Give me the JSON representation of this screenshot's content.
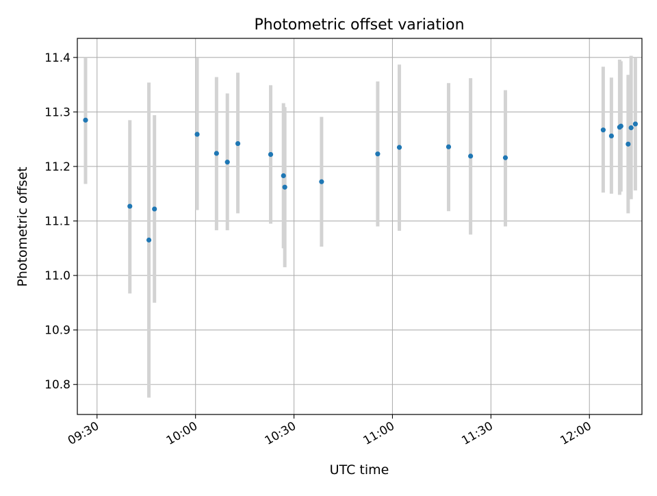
{
  "chart_data": {
    "type": "scatter",
    "title": "Photometric offset variation",
    "xlabel": "UTC time",
    "ylabel": "Photometric offset",
    "xlim": [
      "09:24",
      "12:16"
    ],
    "ylim": [
      10.745,
      11.435
    ],
    "x_ticks": [
      "09:30",
      "10:00",
      "10:30",
      "11:00",
      "11:30",
      "12:00"
    ],
    "y_ticks": [
      10.8,
      10.9,
      11.0,
      11.1,
      11.2,
      11.3,
      11.4
    ],
    "grid": true,
    "colors": {
      "point": "#1f77b4",
      "errorbar": "#d3d3d3",
      "grid": "#b0b0b0"
    },
    "points": [
      {
        "x": "09:26:30",
        "y": 11.285,
        "low": 11.168,
        "high": 11.4
      },
      {
        "x": "09:40:00",
        "y": 11.127,
        "low": 10.967,
        "high": 11.285
      },
      {
        "x": "09:45:48",
        "y": 11.065,
        "low": 10.776,
        "high": 11.354
      },
      {
        "x": "09:47:30",
        "y": 11.122,
        "low": 10.95,
        "high": 11.294
      },
      {
        "x": "10:00:30",
        "y": 11.259,
        "low": 11.12,
        "high": 11.399
      },
      {
        "x": "10:06:24",
        "y": 11.224,
        "low": 11.083,
        "high": 11.364
      },
      {
        "x": "10:09:42",
        "y": 11.208,
        "low": 11.083,
        "high": 11.334
      },
      {
        "x": "10:12:54",
        "y": 11.242,
        "low": 11.114,
        "high": 11.372
      },
      {
        "x": "10:22:54",
        "y": 11.222,
        "low": 11.095,
        "high": 11.349
      },
      {
        "x": "10:26:48",
        "y": 11.183,
        "low": 11.05,
        "high": 11.316
      },
      {
        "x": "10:27:12",
        "y": 11.162,
        "low": 11.015,
        "high": 11.309
      },
      {
        "x": "10:38:24",
        "y": 11.172,
        "low": 11.053,
        "high": 11.291
      },
      {
        "x": "10:55:30",
        "y": 11.223,
        "low": 11.09,
        "high": 11.356
      },
      {
        "x": "11:02:06",
        "y": 11.235,
        "low": 11.082,
        "high": 11.387
      },
      {
        "x": "11:17:06",
        "y": 11.236,
        "low": 11.118,
        "high": 11.353
      },
      {
        "x": "11:23:48",
        "y": 11.219,
        "low": 11.075,
        "high": 11.362
      },
      {
        "x": "11:34:24",
        "y": 11.216,
        "low": 11.09,
        "high": 11.34
      },
      {
        "x": "12:04:12",
        "y": 11.267,
        "low": 11.152,
        "high": 11.383
      },
      {
        "x": "12:06:42",
        "y": 11.256,
        "low": 11.15,
        "high": 11.363
      },
      {
        "x": "12:09:12",
        "y": 11.272,
        "low": 11.148,
        "high": 11.396
      },
      {
        "x": "12:09:36",
        "y": 11.274,
        "low": 11.154,
        "high": 11.393
      },
      {
        "x": "12:11:48",
        "y": 11.241,
        "low": 11.114,
        "high": 11.368
      },
      {
        "x": "12:12:42",
        "y": 11.271,
        "low": 11.14,
        "high": 11.403
      },
      {
        "x": "12:14:00",
        "y": 11.278,
        "low": 11.156,
        "high": 11.4
      }
    ]
  }
}
